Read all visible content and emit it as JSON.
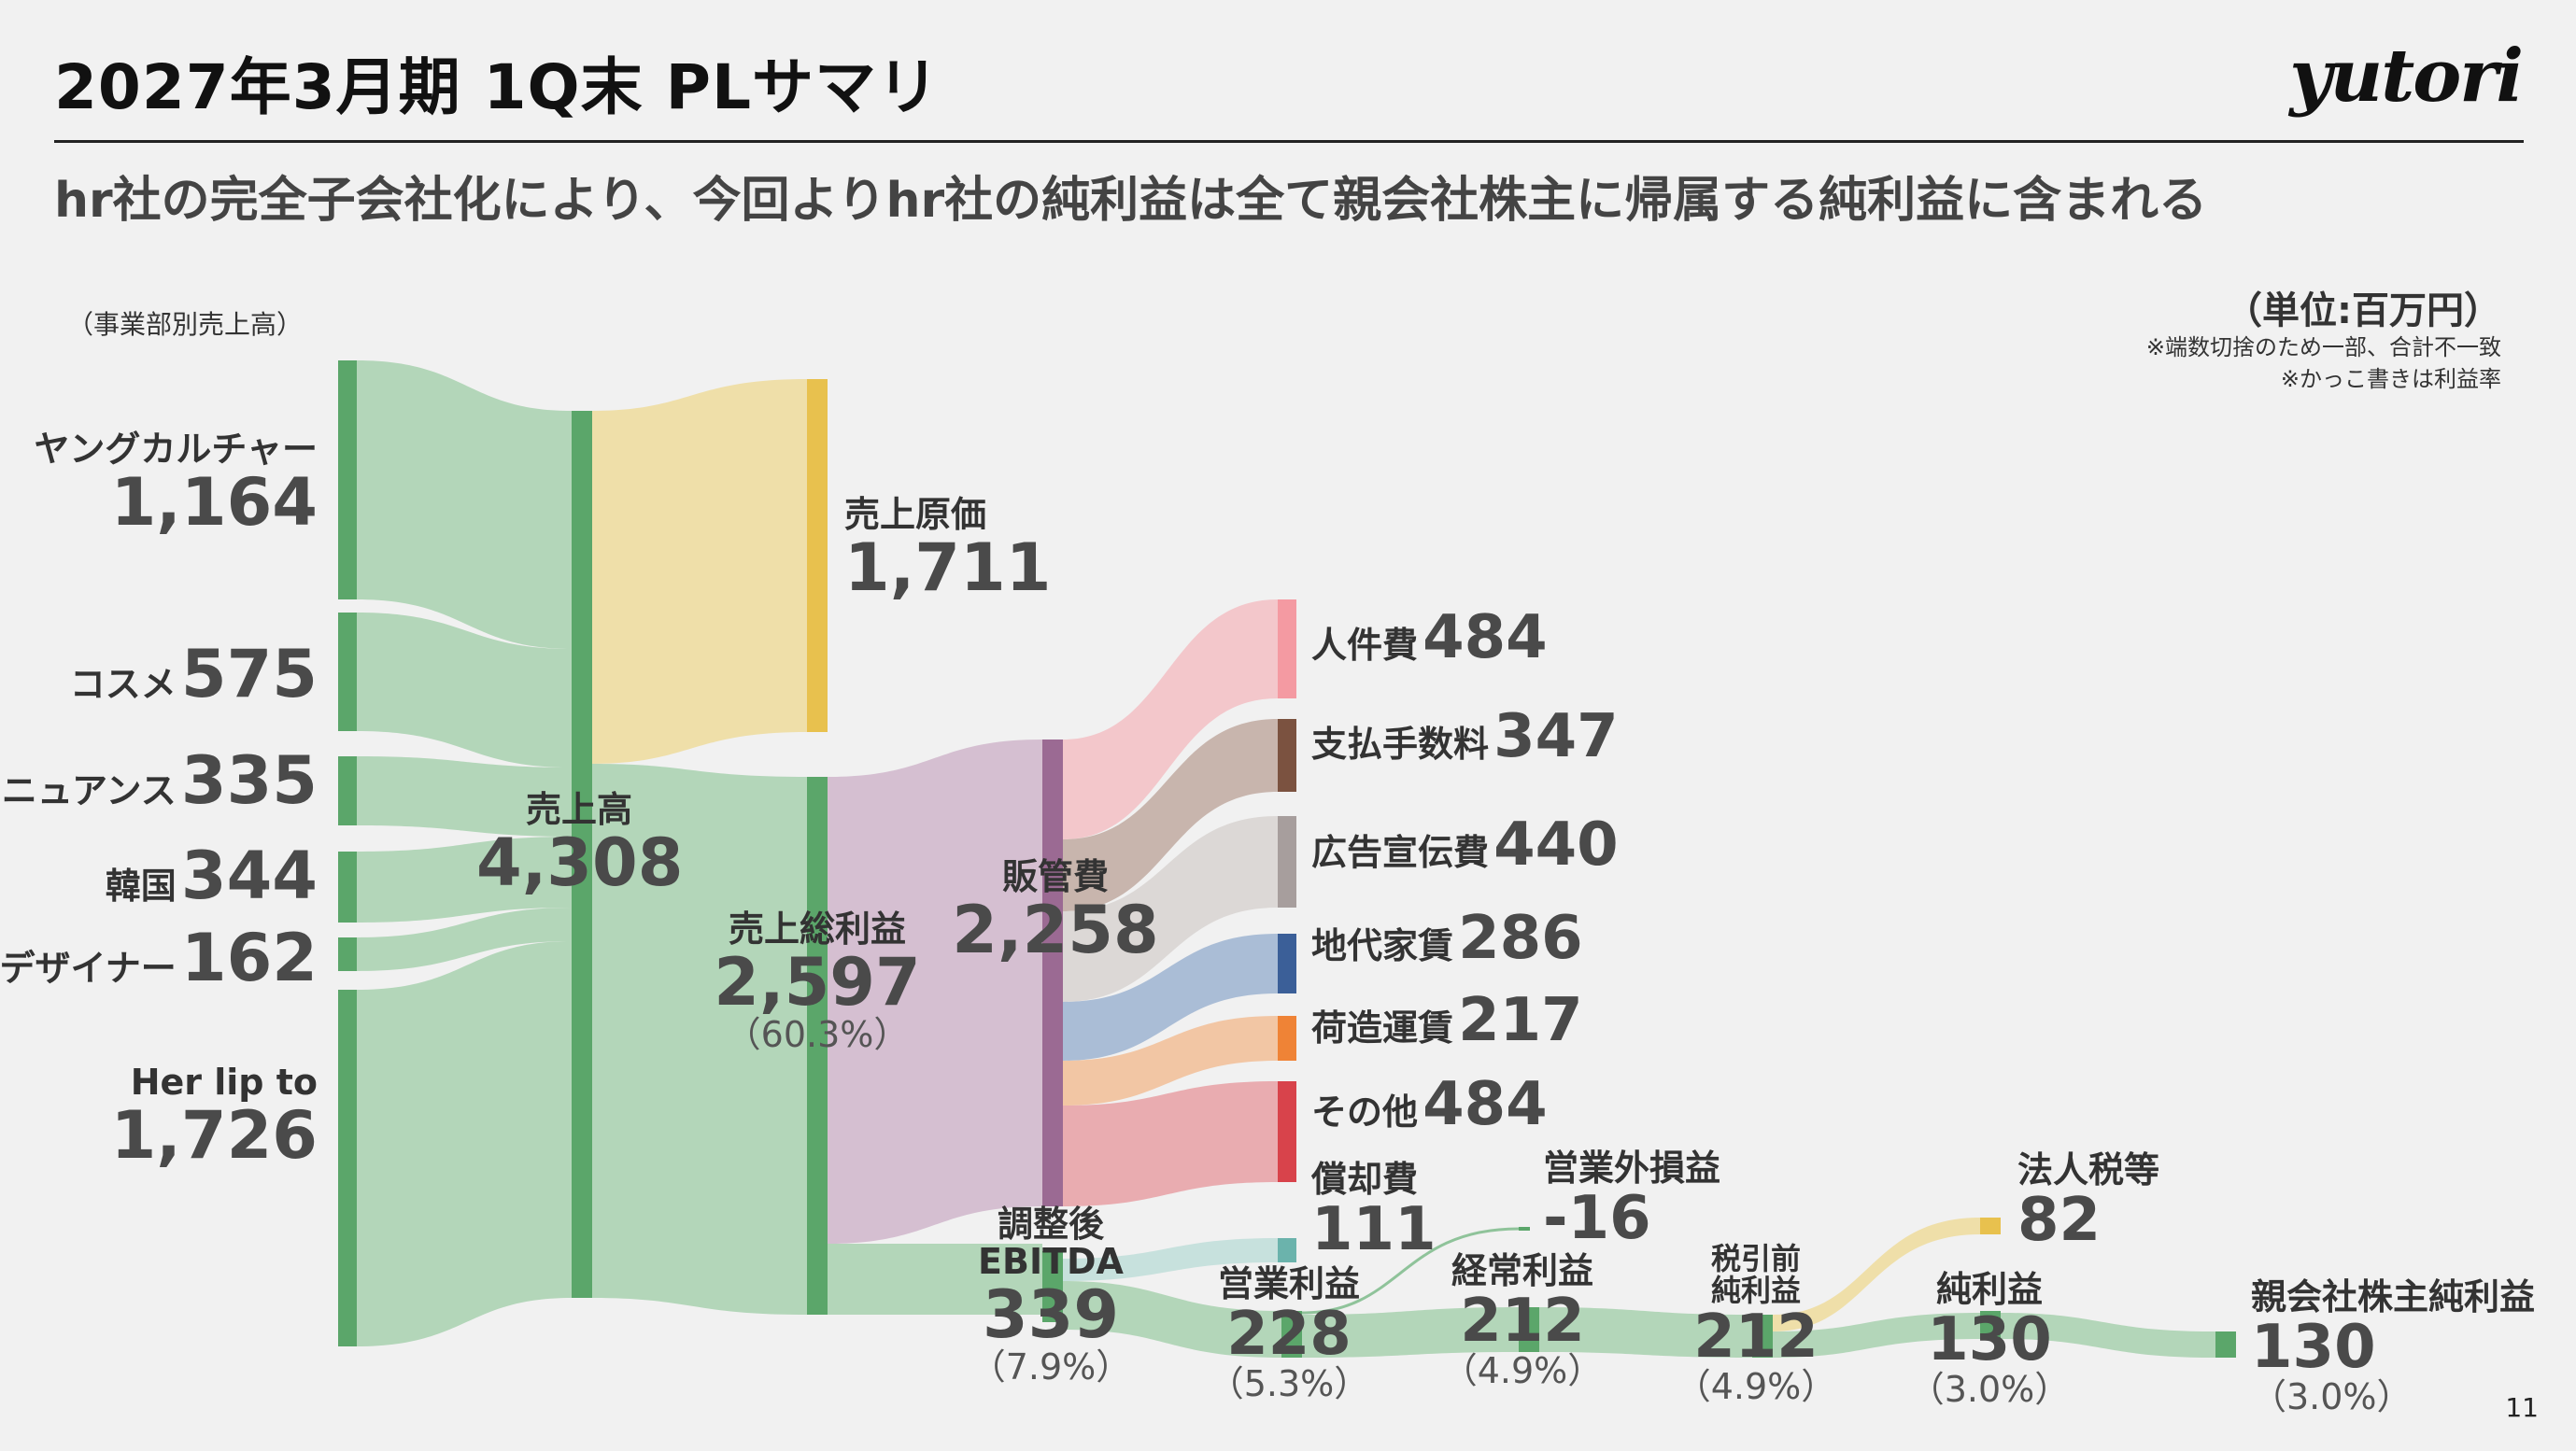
{
  "header": {
    "title": "2027年3月期 1Q末 PLサマリ",
    "logo": "yutori",
    "subtitle": "hr社の完全子会社化により、今回よりhr社の純利益は全て親会社株主に帰属する純利益に含まれる"
  },
  "notes": {
    "unit": "（単位:百万円）",
    "rounding": "※端数切捨のため一部、合計不一致",
    "margin": "※かっこ書きは利益率",
    "segments_caption": "（事業部別売上高）",
    "page": "11"
  },
  "segments": [
    {
      "name": "ヤングカルチャー",
      "value": "1,164"
    },
    {
      "name": "コスメ",
      "value": "575"
    },
    {
      "name": "ニュアンス",
      "value": "335"
    },
    {
      "name": "韓国",
      "value": "344"
    },
    {
      "name": "デザイナー",
      "value": "162"
    },
    {
      "name": "Her lip to",
      "value": "1,726"
    }
  ],
  "nodes": {
    "sales": {
      "name": "売上高",
      "value": "4,308"
    },
    "cogs": {
      "name": "売上原価",
      "value": "1,711"
    },
    "gross_profit": {
      "name": "売上総利益",
      "value": "2,597",
      "margin": "（60.3%）"
    },
    "sga": {
      "name": "販管費",
      "value": "2,258"
    },
    "ebitda": {
      "name1": "調整後",
      "name2": "EBITDA",
      "value": "339",
      "margin": "（7.9%）"
    },
    "depreciation": {
      "name": "償却費",
      "value": "111"
    },
    "operating_profit": {
      "name": "営業利益",
      "value": "228",
      "margin": "（5.3%）"
    },
    "non_operating": {
      "name": "営業外損益",
      "value": "-16"
    },
    "ordinary_profit": {
      "name": "経常利益",
      "value": "212",
      "margin": "（4.9%）"
    },
    "pretax_profit": {
      "name1": "税引前",
      "name2": "純利益",
      "value": "212",
      "margin": "（4.9%）"
    },
    "tax": {
      "name": "法人税等",
      "value": "82"
    },
    "net_profit": {
      "name": "純利益",
      "value": "130",
      "margin": "（3.0%）"
    },
    "parent_net_profit": {
      "name": "親会社株主純利益",
      "value": "130",
      "margin": "（3.0%）"
    }
  },
  "sga_breakdown": [
    {
      "name": "人件費",
      "value": "484"
    },
    {
      "name": "支払手数料",
      "value": "347"
    },
    {
      "name": "広告宣伝費",
      "value": "440"
    },
    {
      "name": "地代家賃",
      "value": "286"
    },
    {
      "name": "荷造運賃",
      "value": "217"
    },
    {
      "name": "その他",
      "value": "484"
    }
  ],
  "chart_data": {
    "type": "sankey",
    "unit": "百万円",
    "nodes": [
      "ヤングカルチャー",
      "コスメ",
      "ニュアンス",
      "韓国",
      "デザイナー",
      "Her lip to",
      "売上高",
      "売上原価",
      "売上総利益",
      "販管費",
      "人件費",
      "支払手数料",
      "広告宣伝費",
      "地代家賃",
      "荷造運賃",
      "その他",
      "調整後EBITDA",
      "償却費",
      "営業利益",
      "営業外損益",
      "経常利益",
      "税引前純利益",
      "法人税等",
      "純利益",
      "親会社株主純利益"
    ],
    "links": [
      {
        "source": "ヤングカルチャー",
        "target": "売上高",
        "value": 1164
      },
      {
        "source": "コスメ",
        "target": "売上高",
        "value": 575
      },
      {
        "source": "ニュアンス",
        "target": "売上高",
        "value": 335
      },
      {
        "source": "韓国",
        "target": "売上高",
        "value": 344
      },
      {
        "source": "デザイナー",
        "target": "売上高",
        "value": 162
      },
      {
        "source": "Her lip to",
        "target": "売上高",
        "value": 1726
      },
      {
        "source": "売上高",
        "target": "売上原価",
        "value": 1711
      },
      {
        "source": "売上高",
        "target": "売上総利益",
        "value": 2597
      },
      {
        "source": "売上総利益",
        "target": "販管費",
        "value": 2258
      },
      {
        "source": "売上総利益",
        "target": "調整後EBITDA",
        "value": 339
      },
      {
        "source": "販管費",
        "target": "人件費",
        "value": 484
      },
      {
        "source": "販管費",
        "target": "支払手数料",
        "value": 347
      },
      {
        "source": "販管費",
        "target": "広告宣伝費",
        "value": 440
      },
      {
        "source": "販管費",
        "target": "地代家賃",
        "value": 286
      },
      {
        "source": "販管費",
        "target": "荷造運賃",
        "value": 217
      },
      {
        "source": "販管費",
        "target": "その他",
        "value": 484
      },
      {
        "source": "調整後EBITDA",
        "target": "償却費",
        "value": 111
      },
      {
        "source": "調整後EBITDA",
        "target": "営業利益",
        "value": 228
      },
      {
        "source": "営業利益",
        "target": "営業外損益",
        "value": 16
      },
      {
        "source": "営業利益",
        "target": "経常利益",
        "value": 212
      },
      {
        "source": "経常利益",
        "target": "税引前純利益",
        "value": 212
      },
      {
        "source": "税引前純利益",
        "target": "法人税等",
        "value": 82
      },
      {
        "source": "税引前純利益",
        "target": "純利益",
        "value": 130
      },
      {
        "source": "純利益",
        "target": "親会社株主純利益",
        "value": 130
      }
    ],
    "margins": {
      "売上総利益": "60.3%",
      "調整後EBITDA": "7.9%",
      "営業利益": "5.3%",
      "経常利益": "4.9%",
      "税引前純利益": "4.9%",
      "純利益": "3.0%",
      "親会社株主純利益": "3.0%"
    },
    "colors": {
      "revenue": "#5ba66a",
      "revenue_flow": "#b3d6b9",
      "cogs": "#e8c14e",
      "cogs_flow": "#efdfa9",
      "sga": "#9b6a93",
      "sga_flow": "#d5bfd1",
      "人件費": "#f49aa2",
      "支払手数料": "#7b5240",
      "広告宣伝費": "#a79e9d",
      "地代家賃": "#3b5f98",
      "荷造運賃": "#ef8336",
      "その他": "#d8434b",
      "償却費": "#6bb3ac",
      "tax": "#e8c14e"
    }
  }
}
